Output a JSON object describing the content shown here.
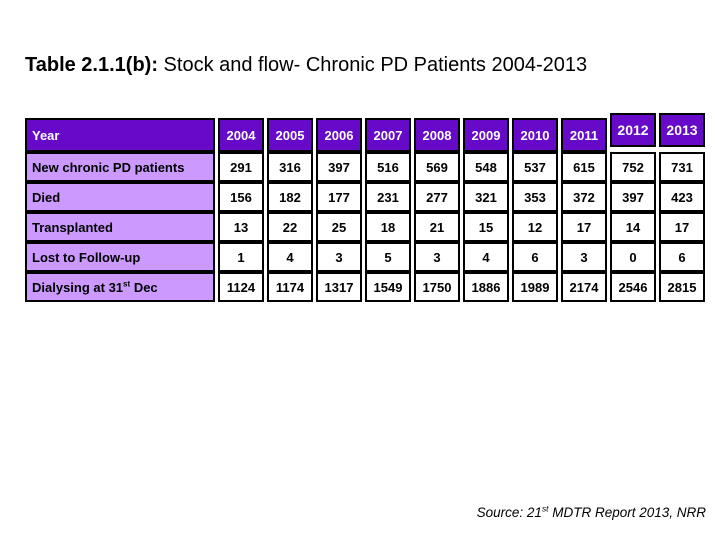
{
  "title": {
    "prefix": "Table 2.1.1(b):",
    "rest": " Stock and flow- Chronic PD Patients 2004-2013"
  },
  "table": {
    "header": {
      "label": "Year",
      "years": [
        "2004",
        "2005",
        "2006",
        "2007",
        "2008",
        "2009",
        "2010",
        "2011",
        "2012",
        "2013"
      ]
    },
    "rows": [
      {
        "label": "New chronic PD patients",
        "values": [
          291,
          316,
          397,
          516,
          569,
          548,
          537,
          615,
          752,
          731
        ]
      },
      {
        "label": "Died",
        "values": [
          156,
          182,
          177,
          231,
          277,
          321,
          353,
          372,
          397,
          423
        ]
      },
      {
        "label": "Transplanted",
        "values": [
          13,
          22,
          25,
          18,
          21,
          15,
          12,
          17,
          14,
          17
        ]
      },
      {
        "label": "Lost to Follow-up",
        "values": [
          1,
          4,
          3,
          5,
          3,
          4,
          6,
          3,
          0,
          6
        ]
      },
      {
        "label_pre": "Dialysing at 31",
        "label_sup": "st",
        "label_post": " Dec",
        "values": [
          1124,
          1174,
          1317,
          1549,
          1750,
          1886,
          1989,
          2174,
          2546,
          2815
        ]
      }
    ]
  },
  "source": {
    "prefix": "Source: 21",
    "sup": "st",
    "suffix": " MDTR Report 2013, NRR"
  },
  "colors": {
    "header_bg": "#6609C9",
    "label_bg": "#CC99FF",
    "border": "#000000",
    "background": "#ffffff"
  },
  "chart_data": {
    "type": "table",
    "title": "Table 2.1.1(b): Stock and flow- Chronic PD Patients 2004-2013",
    "categories": [
      "2004",
      "2005",
      "2006",
      "2007",
      "2008",
      "2009",
      "2010",
      "2011",
      "2012",
      "2013"
    ],
    "series": [
      {
        "name": "New chronic PD patients",
        "values": [
          291,
          316,
          397,
          516,
          569,
          548,
          537,
          615,
          752,
          731
        ]
      },
      {
        "name": "Died",
        "values": [
          156,
          182,
          177,
          231,
          277,
          321,
          353,
          372,
          397,
          423
        ]
      },
      {
        "name": "Transplanted",
        "values": [
          13,
          22,
          25,
          18,
          21,
          15,
          12,
          17,
          14,
          17
        ]
      },
      {
        "name": "Lost to Follow-up",
        "values": [
          1,
          4,
          3,
          5,
          3,
          4,
          6,
          3,
          0,
          6
        ]
      },
      {
        "name": "Dialysing at 31st Dec",
        "values": [
          1124,
          1174,
          1317,
          1549,
          1750,
          1886,
          1989,
          2174,
          2546,
          2815
        ]
      }
    ],
    "source": "Source: 21st MDTR Report 2013, NRR"
  }
}
